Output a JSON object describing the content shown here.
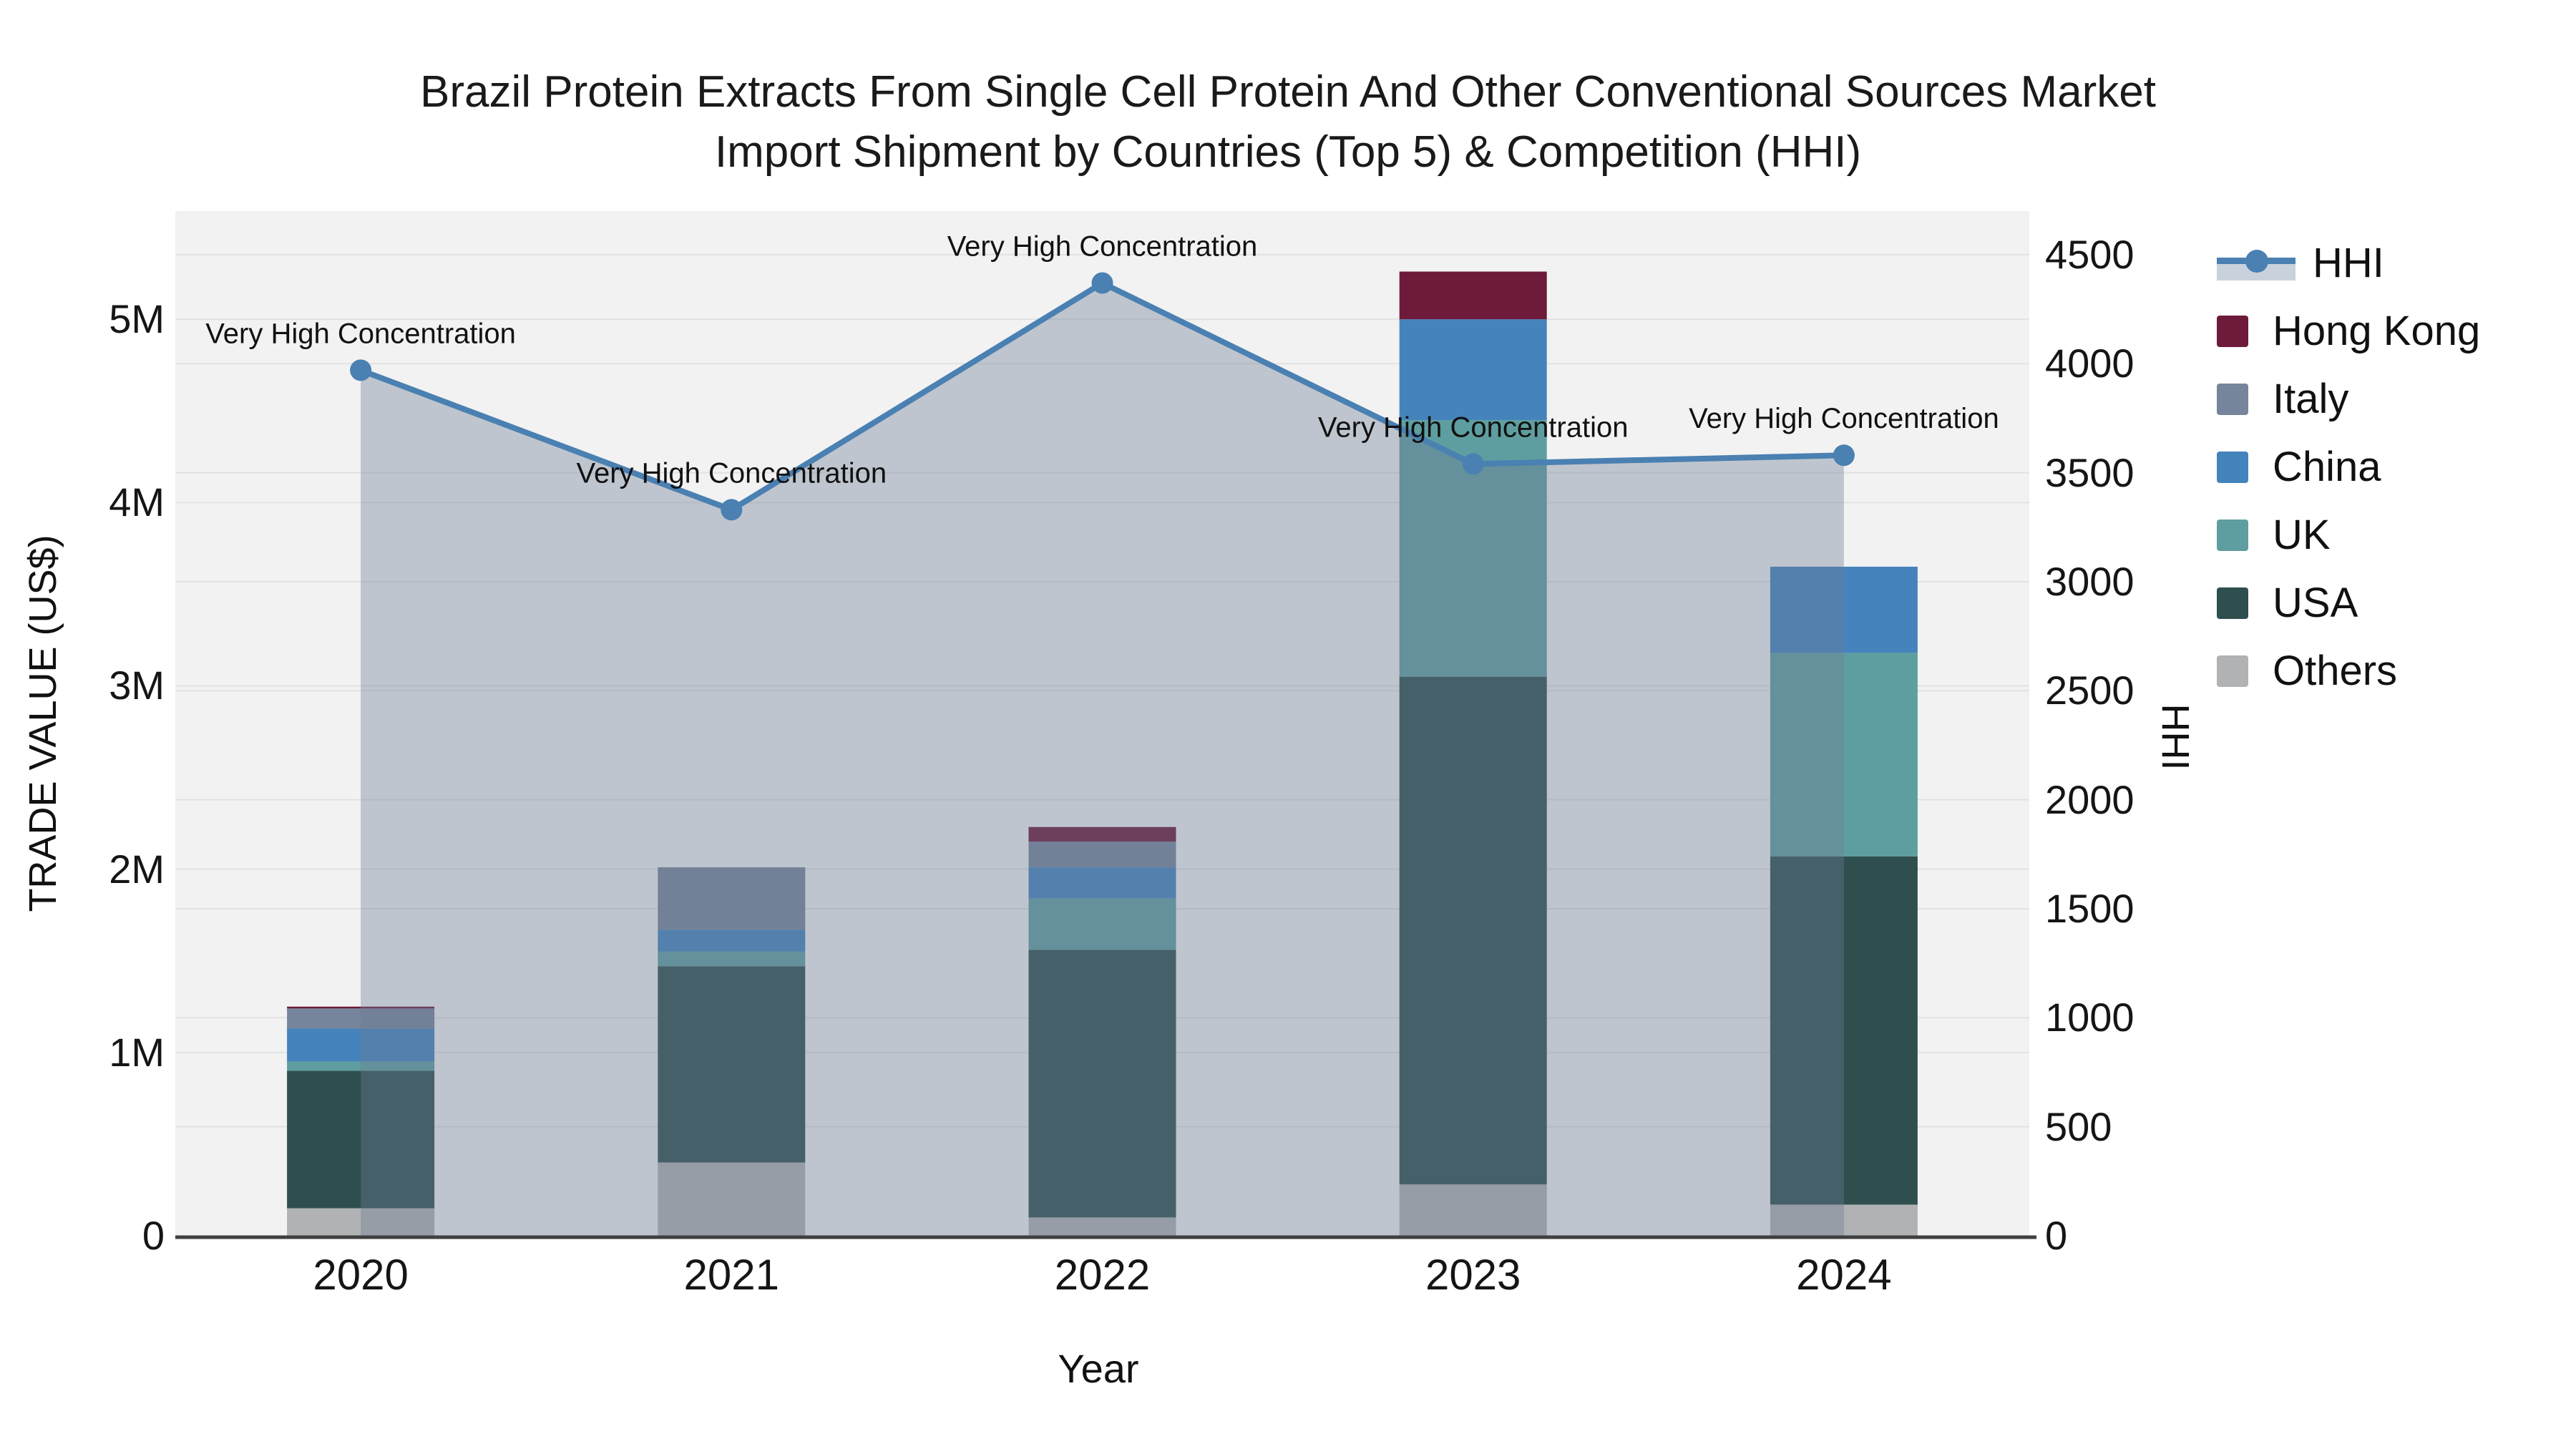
{
  "title": {
    "line1": "Brazil Protein Extracts From Single Cell Protein And Other Conventional Sources Market",
    "line2": "Import Shipment by Countries (Top 5) & Competition (HHI)"
  },
  "axes": {
    "x_title": "Year",
    "y_left_title": "TRADE VALUE (US$)",
    "y_right_title": "HHI",
    "y_left_max": 5590000,
    "y_right_max": 4700,
    "y_left_ticks": [
      {
        "label": "0",
        "value": 0
      },
      {
        "label": "1M",
        "value": 1000000
      },
      {
        "label": "2M",
        "value": 2000000
      },
      {
        "label": "3M",
        "value": 3000000
      },
      {
        "label": "4M",
        "value": 4000000
      },
      {
        "label": "5M",
        "value": 5000000
      }
    ],
    "y_right_ticks": [
      {
        "label": "0",
        "value": 0
      },
      {
        "label": "500",
        "value": 500
      },
      {
        "label": "1000",
        "value": 1000
      },
      {
        "label": "1500",
        "value": 1500
      },
      {
        "label": "2000",
        "value": 2000
      },
      {
        "label": "2500",
        "value": 2500
      },
      {
        "label": "3000",
        "value": 3000
      },
      {
        "label": "3500",
        "value": 3500
      },
      {
        "label": "4000",
        "value": 4000
      },
      {
        "label": "4500",
        "value": 4500
      }
    ]
  },
  "chart_data": {
    "type": "bar+line",
    "categories": [
      "2020",
      "2021",
      "2022",
      "2023",
      "2024"
    ],
    "bar_unit": "US$",
    "series": [
      {
        "name": "Others",
        "color": "#b0b2b4",
        "values": [
          150000,
          400000,
          100000,
          280000,
          170000
        ]
      },
      {
        "name": "USA",
        "color": "#2f4f4f",
        "values": [
          750000,
          1070000,
          1460000,
          2770000,
          1900000
        ]
      },
      {
        "name": "UK",
        "color": "#5f9ea0",
        "values": [
          50000,
          80000,
          280000,
          1400000,
          1110000
        ]
      },
      {
        "name": "China",
        "color": "#4583bc",
        "values": [
          180000,
          120000,
          170000,
          550000,
          470000
        ]
      },
      {
        "name": "Italy",
        "color": "#76859b",
        "values": [
          110000,
          340000,
          140000,
          0,
          0
        ]
      },
      {
        "name": "Hong Kong",
        "color": "#6d1a3b",
        "values": [
          10000,
          0,
          80000,
          260000,
          0
        ]
      }
    ],
    "hhi": {
      "name": "HHI",
      "color": "#4a80b2",
      "area_color": "rgba(107,124,147,0.38)",
      "values": [
        3970,
        3330,
        4370,
        3540,
        3580
      ]
    },
    "annotations": [
      {
        "text": "Very High Concentration",
        "year": "2020"
      },
      {
        "text": "Very High Concentration",
        "year": "2021"
      },
      {
        "text": "Very High Concentration",
        "year": "2022"
      },
      {
        "text": "Very High Concentration",
        "year": "2023"
      },
      {
        "text": "Very High Concentration",
        "year": "2024"
      }
    ],
    "plot_bg": "#f2f2f2",
    "grid_color": "#e2e2e2",
    "axis_line_color": "#3f3f3f"
  },
  "legend": {
    "items": [
      {
        "label": "HHI",
        "type": "line",
        "color": "#4a80b2",
        "band_color": "#c9d2dc"
      },
      {
        "label": "Hong Kong",
        "type": "square",
        "color": "#6d1a3b"
      },
      {
        "label": "Italy",
        "type": "square",
        "color": "#76859b"
      },
      {
        "label": "China",
        "type": "square",
        "color": "#4583bc"
      },
      {
        "label": "UK",
        "type": "square",
        "color": "#5f9ea0"
      },
      {
        "label": "USA",
        "type": "square",
        "color": "#2f4f4f"
      },
      {
        "label": "Others",
        "type": "square",
        "color": "#b0b2b4"
      }
    ]
  }
}
